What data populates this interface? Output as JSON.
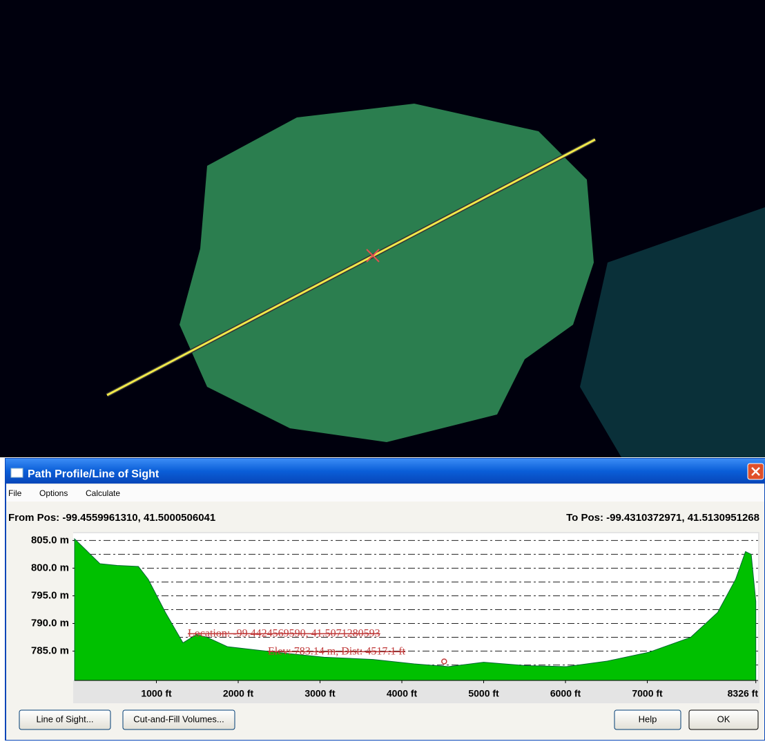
{
  "window": {
    "title": "Path Profile/Line of Sight",
    "menu": [
      "File",
      "Options",
      "Calculate"
    ],
    "from_pos": "From Pos: -99.4559961310, 41.5000506041",
    "to_pos": "To Pos: -99.4310372971, 41.5130951268",
    "buttons": [
      "Line of Sight...",
      "Cut-and-Fill Volumes...",
      "Help",
      "OK"
    ]
  },
  "chart_data": {
    "type": "area",
    "x": [
      0,
      310,
      520,
      780,
      900,
      1110,
      1325,
      1490,
      1620,
      1870,
      2460,
      3050,
      3650,
      4150,
      4570,
      5000,
      5500,
      6010,
      6510,
      7020,
      7530,
      7860,
      8080,
      8200,
      8270,
      8326
    ],
    "values": [
      805.3,
      800.8,
      800.5,
      800.3,
      798,
      792,
      786.5,
      788,
      787.5,
      785.8,
      784.8,
      783.9,
      783.5,
      782.7,
      782.2,
      783,
      782.4,
      782.2,
      783.2,
      784.8,
      787.5,
      792,
      798,
      803,
      802.5,
      794
    ],
    "color": "#00c000",
    "xlim": [
      0,
      8354
    ],
    "ylim": [
      779.7,
      806.3
    ],
    "xticks": [
      {
        "value": 1000,
        "label": "1000 ft"
      },
      {
        "value": 2000,
        "label": "2000 ft"
      },
      {
        "value": 3000,
        "label": "3000 ft"
      },
      {
        "value": 4000,
        "label": "4000 ft"
      },
      {
        "value": 5000,
        "label": "5000 ft"
      },
      {
        "value": 6000,
        "label": "6000 ft"
      },
      {
        "value": 7000,
        "label": "7000 ft"
      },
      {
        "value": 8326,
        "label": "8326 ft"
      }
    ],
    "yticks": [
      {
        "value": 805,
        "label": "805.0 m"
      },
      {
        "value": 800,
        "label": "800.0 m"
      },
      {
        "value": 795,
        "label": "795.0 m"
      },
      {
        "value": 790,
        "label": "790.0 m"
      },
      {
        "value": 785,
        "label": "785.0 m"
      }
    ],
    "grid_lines": [
      805,
      802.5,
      800,
      797.5,
      795,
      792.5,
      790,
      787.5,
      785,
      782.5
    ],
    "annotations": [
      "Location: -99.4424569590, 41.5071280593",
      "Elev: 783.14 m, Dist: 4517.1 ft"
    ],
    "marker": {
      "x": 4517.1,
      "value": 783.14
    }
  }
}
